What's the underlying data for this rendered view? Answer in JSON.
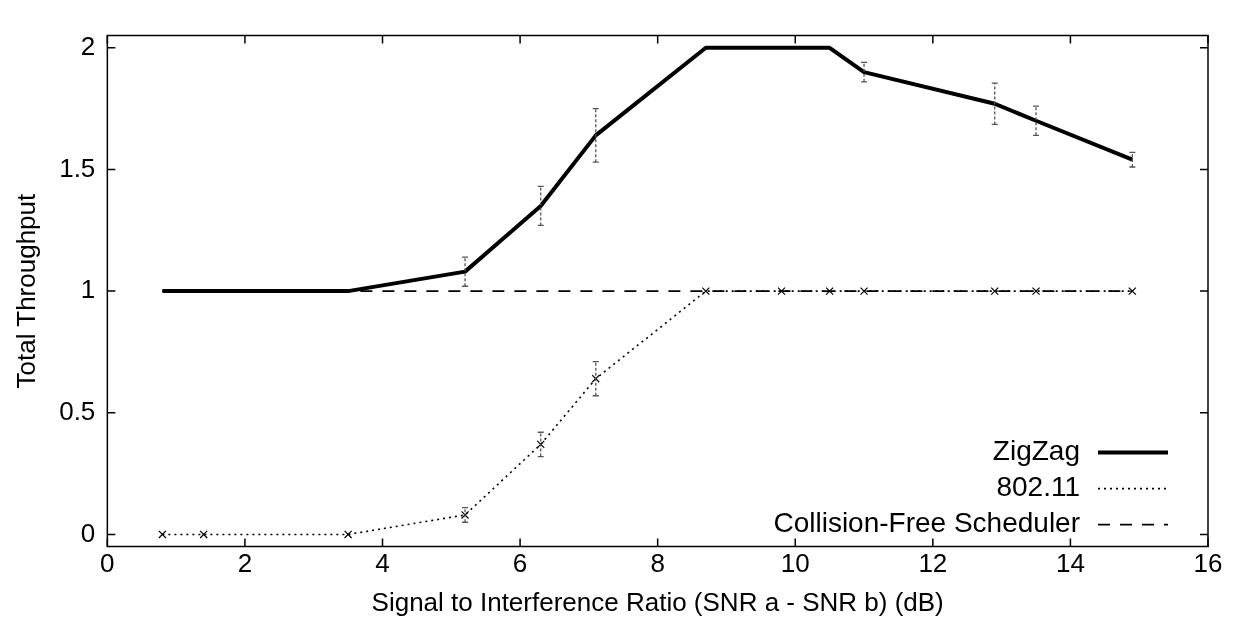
{
  "chart_data": {
    "type": "line",
    "xlabel": "Signal to Interference Ratio (SNR a - SNR b) (dB)",
    "ylabel": "Total Throughput",
    "x": [
      0.8,
      1.4,
      3.5,
      5.2,
      6.3,
      7.1,
      8.7,
      9.8,
      10.5,
      11,
      12.9,
      13.5,
      14.9
    ],
    "xlim": [
      0,
      16
    ],
    "xticks": [
      0,
      2,
      4,
      6,
      8,
      10,
      12,
      14,
      16
    ],
    "ylim": [
      -0.05,
      2.05
    ],
    "yticks": [
      0,
      0.5,
      1,
      1.5,
      2
    ],
    "grid": false,
    "legend": "bottom right",
    "series": [
      {
        "name": "ZigZag",
        "color": "#000000",
        "line_style": "solid",
        "marker": "none",
        "values": [
          1,
          1,
          1,
          1.08,
          1.35,
          1.64,
          2,
          2,
          2,
          1.9,
          1.77,
          1.7,
          1.54
        ],
        "errors": [
          null,
          null,
          null,
          0.06,
          0.08,
          0.11,
          null,
          null,
          null,
          0.04,
          0.085,
          0.06,
          0.03
        ]
      },
      {
        "name": "802.11",
        "color": "#000000",
        "line_style": "dotted",
        "marker": "cross",
        "values": [
          0,
          0,
          0,
          0.08,
          0.37,
          0.64,
          1,
          1,
          1,
          1,
          1,
          1,
          1
        ],
        "errors": [
          null,
          null,
          null,
          0.03,
          0.05,
          0.07,
          null,
          null,
          null,
          null,
          null,
          null,
          null
        ]
      },
      {
        "name": "Collision-Free Scheduler",
        "color": "#000000",
        "line_style": "dashed",
        "marker": "none",
        "values": [
          1,
          1,
          1,
          1,
          1,
          1,
          1,
          1,
          1,
          1,
          1,
          1,
          1
        ]
      }
    ]
  }
}
